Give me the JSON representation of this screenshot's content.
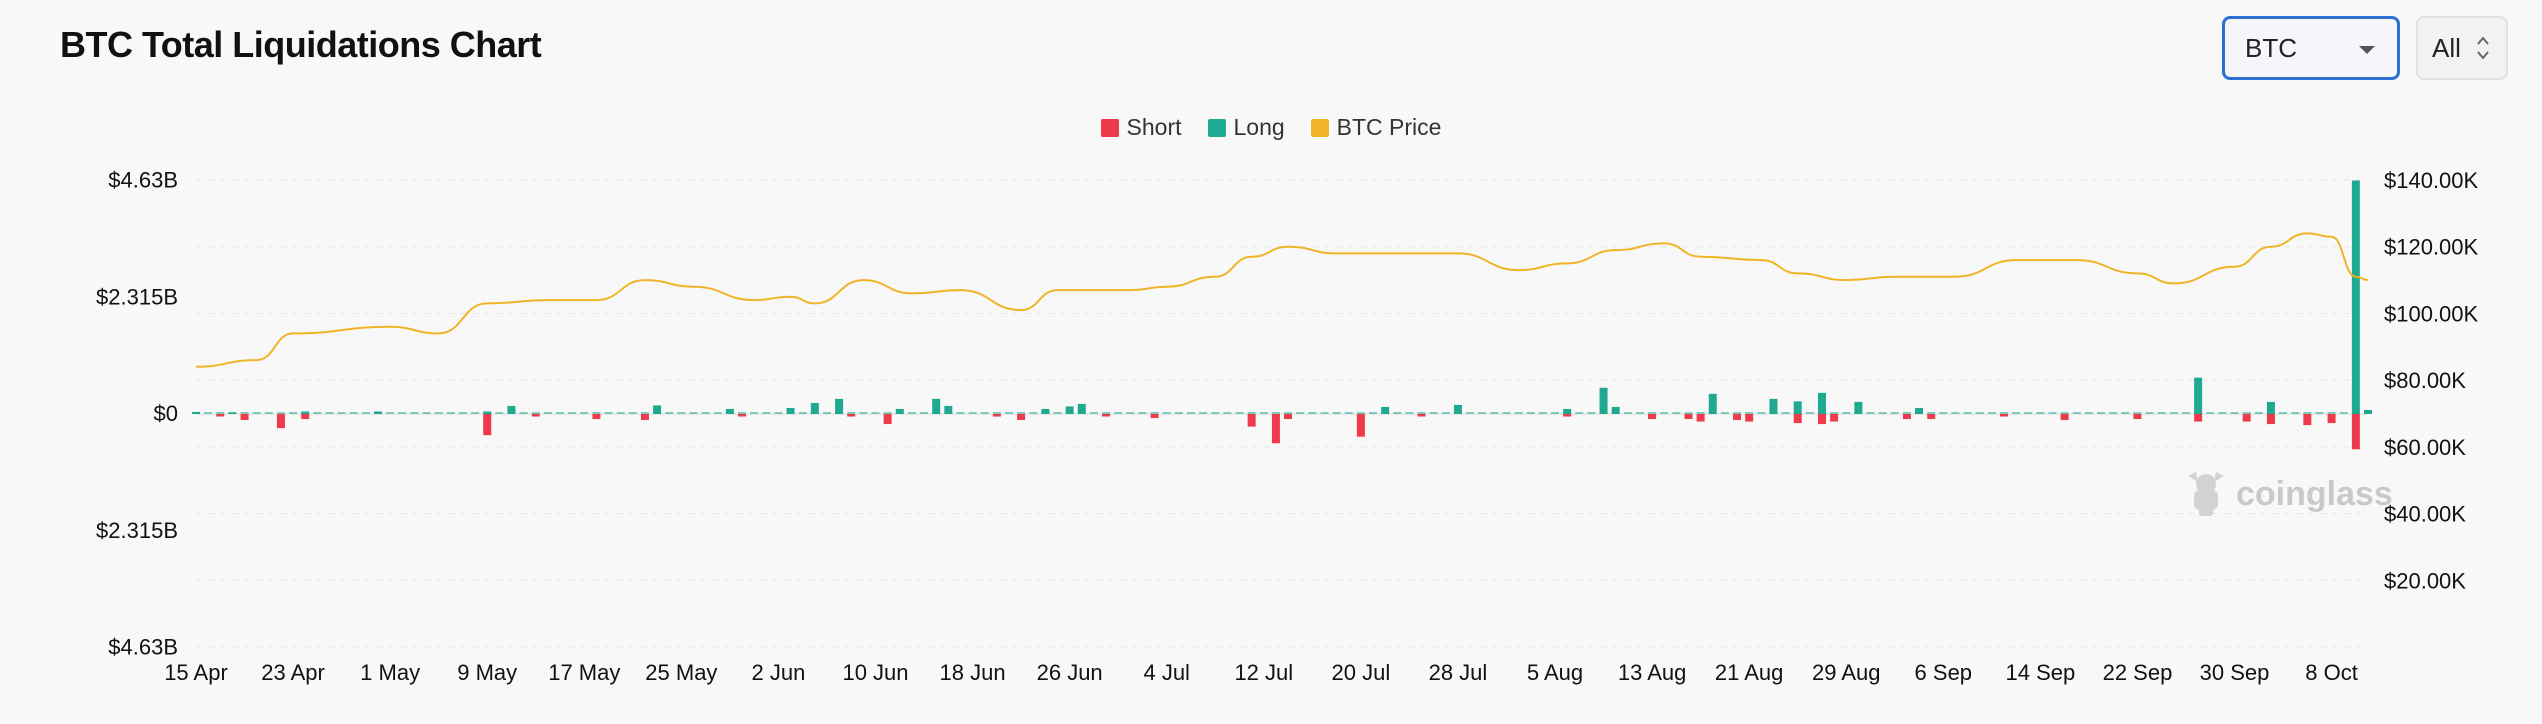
{
  "header": {
    "title": "BTC Total Liquidations Chart",
    "coin_select": "BTC",
    "range_select": "All"
  },
  "watermark": "coinglass",
  "colors": {
    "short": "#ee3b4b",
    "long": "#1fa990",
    "price": "#f0b429"
  },
  "chart_data": {
    "type": "bar",
    "legend": [
      "Short",
      "Long",
      "BTC Price"
    ],
    "legend_position": "top-center",
    "x_tick_labels": [
      "15 Apr",
      "23 Apr",
      "1 May",
      "9 May",
      "17 May",
      "25 May",
      "2 Jun",
      "10 Jun",
      "18 Jun",
      "26 Jun",
      "4 Jul",
      "12 Jul",
      "20 Jul",
      "28 Jul",
      "5 Aug",
      "13 Aug",
      "21 Aug",
      "29 Aug",
      "6 Sep",
      "14 Sep",
      "22 Sep",
      "30 Sep",
      "8 Oct"
    ],
    "x_range": [
      "2025-04-15",
      "2025-10-11"
    ],
    "y_left_ticks": [
      "$4.63B",
      "$2.315B",
      "$0",
      "$2.315B",
      "$4.63B"
    ],
    "y_left_range": [
      -4.63,
      4.63
    ],
    "y_left_unit": "B",
    "y_right_ticks": [
      "$140.00K",
      "$120.00K",
      "$100.00K",
      "$80.00K",
      "$60.00K",
      "$40.00K",
      "$20.00K"
    ],
    "y_right_range": [
      0,
      140
    ],
    "y_right_unit": "K",
    "grid": true,
    "series": [
      {
        "name": "Long",
        "dates": [
          "2025-04-15",
          "2025-04-18",
          "2025-04-24",
          "2025-04-30",
          "2025-05-09",
          "2025-05-11",
          "2025-05-23",
          "2025-05-29",
          "2025-06-03",
          "2025-06-05",
          "2025-06-07",
          "2025-06-12",
          "2025-06-15",
          "2025-06-16",
          "2025-06-24",
          "2025-06-26",
          "2025-06-27",
          "2025-07-22",
          "2025-07-28",
          "2025-08-06",
          "2025-08-09",
          "2025-08-10",
          "2025-08-18",
          "2025-08-23",
          "2025-08-25",
          "2025-08-27",
          "2025-08-30",
          "2025-09-04",
          "2025-09-27",
          "2025-10-03",
          "2025-10-10",
          "2025-10-11"
        ],
        "values": [
          0.04,
          0.03,
          0.05,
          0.05,
          0.05,
          0.16,
          0.17,
          0.1,
          0.12,
          0.22,
          0.3,
          0.1,
          0.3,
          0.16,
          0.1,
          0.15,
          0.2,
          0.14,
          0.18,
          0.1,
          0.52,
          0.14,
          0.4,
          0.3,
          0.25,
          0.42,
          0.24,
          0.12,
          0.72,
          0.24,
          4.63,
          0.08
        ]
      },
      {
        "name": "Short",
        "dates": [
          "2025-04-17",
          "2025-04-19",
          "2025-04-22",
          "2025-04-24",
          "2025-05-09",
          "2025-05-13",
          "2025-05-18",
          "2025-05-22",
          "2025-05-30",
          "2025-06-08",
          "2025-06-11",
          "2025-06-20",
          "2025-06-22",
          "2025-06-29",
          "2025-07-03",
          "2025-07-11",
          "2025-07-13",
          "2025-07-14",
          "2025-07-20",
          "2025-07-25",
          "2025-08-06",
          "2025-08-13",
          "2025-08-16",
          "2025-08-17",
          "2025-08-20",
          "2025-08-21",
          "2025-08-25",
          "2025-08-27",
          "2025-08-28",
          "2025-09-03",
          "2025-09-05",
          "2025-09-11",
          "2025-09-16",
          "2025-09-22",
          "2025-09-27",
          "2025-10-01",
          "2025-10-03",
          "2025-10-06",
          "2025-10-08",
          "2025-10-10"
        ],
        "values": [
          0.05,
          0.12,
          0.28,
          0.1,
          0.42,
          0.05,
          0.1,
          0.12,
          0.05,
          0.05,
          0.2,
          0.05,
          0.12,
          0.05,
          0.08,
          0.25,
          0.58,
          0.1,
          0.45,
          0.05,
          0.05,
          0.1,
          0.1,
          0.15,
          0.12,
          0.15,
          0.18,
          0.2,
          0.15,
          0.1,
          0.1,
          0.05,
          0.12,
          0.1,
          0.15,
          0.15,
          0.2,
          0.22,
          0.18,
          0.7
        ]
      },
      {
        "name": "BTC Price",
        "dates": [
          "2025-04-15",
          "2025-04-20",
          "2025-04-23",
          "2025-05-01",
          "2025-05-05",
          "2025-05-09",
          "2025-05-14",
          "2025-05-18",
          "2025-05-22",
          "2025-05-26",
          "2025-05-31",
          "2025-06-03",
          "2025-06-05",
          "2025-06-09",
          "2025-06-13",
          "2025-06-17",
          "2025-06-22",
          "2025-06-25",
          "2025-07-01",
          "2025-07-04",
          "2025-07-08",
          "2025-07-11",
          "2025-07-14",
          "2025-07-18",
          "2025-07-23",
          "2025-07-28",
          "2025-08-02",
          "2025-08-06",
          "2025-08-10",
          "2025-08-14",
          "2025-08-17",
          "2025-08-22",
          "2025-08-25",
          "2025-08-29",
          "2025-09-02",
          "2025-09-07",
          "2025-09-12",
          "2025-09-17",
          "2025-09-22",
          "2025-09-25",
          "2025-09-30",
          "2025-10-03",
          "2025-10-06",
          "2025-10-08",
          "2025-10-10",
          "2025-10-11"
        ],
        "values": [
          84,
          86,
          94,
          96,
          94,
          103,
          104,
          104,
          110,
          108,
          104,
          105,
          103,
          110,
          106,
          107,
          101,
          107,
          107,
          108,
          111,
          117,
          120,
          118,
          118,
          118,
          113,
          115,
          119,
          121,
          117,
          116,
          112,
          110,
          111,
          111,
          116,
          116,
          112,
          109,
          114,
          120,
          124,
          123,
          111,
          110
        ]
      }
    ]
  }
}
